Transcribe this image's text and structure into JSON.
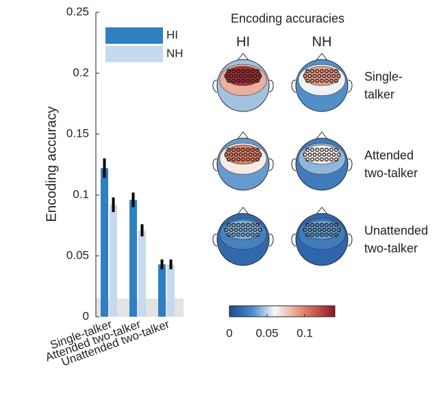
{
  "chart_data": [
    {
      "type": "bar",
      "y_label": "Encoding accuracy",
      "categories": [
        "Single-talker",
        "Attended two-talker",
        "Unattended two-talker"
      ],
      "series": [
        {
          "name": "HI",
          "color": "#2f7fc3",
          "values": [
            0.122,
            0.096,
            0.043
          ],
          "errors": [
            0.008,
            0.006,
            0.004
          ]
        },
        {
          "name": "NH",
          "color": "#c6daef",
          "values": [
            0.092,
            0.071,
            0.043
          ],
          "errors": [
            0.006,
            0.005,
            0.004
          ]
        }
      ],
      "noise_floor": 0.015,
      "ylim": [
        0,
        0.25
      ],
      "yticks": [
        0,
        0.05,
        0.1,
        0.15,
        0.2,
        0.25
      ],
      "legend": "top"
    },
    {
      "type": "topomap",
      "title": "Encoding accuracies",
      "columns": [
        "HI",
        "NH"
      ],
      "rows": [
        [
          "Single-",
          "talker"
        ],
        [
          "Attended",
          "two-talker"
        ],
        [
          "Unattended",
          "two-talker"
        ]
      ],
      "values": [
        [
          0.13,
          0.09
        ],
        [
          0.1,
          0.065
        ],
        [
          0.04,
          0.035
        ]
      ],
      "clim": [
        0,
        0.14
      ],
      "cticks": [
        0,
        0.05,
        0.1
      ]
    }
  ]
}
